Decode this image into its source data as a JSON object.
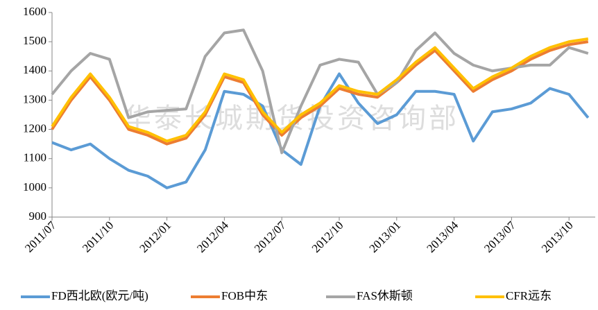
{
  "chart_data": {
    "type": "line",
    "watermark": "华泰长城期货投资咨询部",
    "categories": [
      "2011/07",
      null,
      null,
      "2011/10",
      null,
      null,
      "2012/01",
      null,
      null,
      "2012/04",
      null,
      null,
      "2012/07",
      null,
      null,
      "2012/10",
      null,
      null,
      "2013/01",
      null,
      null,
      "2013/04",
      null,
      null,
      "2013/07",
      null,
      null,
      "2013/10",
      null
    ],
    "series": [
      {
        "name": "FD西北欧(欧元/吨)",
        "color": "#5b9bd5",
        "values": [
          1155,
          1130,
          1150,
          1100,
          1060,
          1040,
          1000,
          1020,
          1130,
          1330,
          1320,
          1280,
          1130,
          1080,
          1280,
          1390,
          1290,
          1220,
          1250,
          1330,
          1330,
          1320,
          1160,
          1260,
          1270,
          1290,
          1340,
          1320,
          1240
        ]
      },
      {
        "name": "FOB中东",
        "color": "#ed7d31",
        "values": [
          1200,
          1300,
          1380,
          1300,
          1200,
          1180,
          1150,
          1170,
          1250,
          1380,
          1360,
          1250,
          1180,
          1240,
          1280,
          1340,
          1320,
          1310,
          1360,
          1420,
          1470,
          1400,
          1330,
          1370,
          1400,
          1440,
          1470,
          1490,
          1500
        ]
      },
      {
        "name": "FAS休斯顿",
        "color": "#a5a5a5",
        "values": [
          1320,
          1400,
          1460,
          1440,
          1240,
          1260,
          1265,
          1270,
          1450,
          1530,
          1540,
          1400,
          1120,
          1280,
          1420,
          1440,
          1430,
          1320,
          1360,
          1470,
          1530,
          1460,
          1420,
          1400,
          1410,
          1420,
          1420,
          1480,
          1460
        ]
      },
      {
        "name": "CFR远东",
        "color": "#ffc000",
        "values": [
          1210,
          1310,
          1390,
          1310,
          1210,
          1190,
          1160,
          1180,
          1260,
          1390,
          1370,
          1260,
          1190,
          1250,
          1290,
          1350,
          1330,
          1320,
          1370,
          1430,
          1480,
          1410,
          1340,
          1380,
          1410,
          1450,
          1480,
          1500,
          1510
        ]
      }
    ],
    "ylim": [
      900,
      1600
    ],
    "yticks": [
      900,
      1000,
      1100,
      1200,
      1300,
      1400,
      1500,
      1600
    ],
    "legend": "bottom"
  }
}
